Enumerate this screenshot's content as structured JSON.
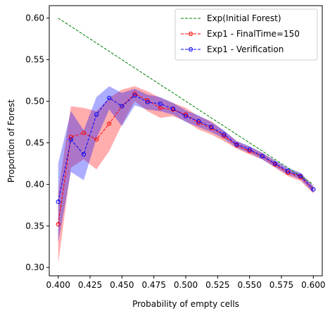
{
  "chart_data": {
    "type": "line",
    "xlabel": "Probability of empty cells",
    "ylabel": "Proportion of Forest",
    "xlim": [
      0.393,
      0.607
    ],
    "ylim": [
      0.29,
      0.615
    ],
    "xticks": [
      0.4,
      0.425,
      0.45,
      0.475,
      0.5,
      0.525,
      0.55,
      0.575,
      0.6
    ],
    "xtick_labels": [
      "0.400",
      "0.425",
      "0.450",
      "0.475",
      "0.500",
      "0.525",
      "0.550",
      "0.575",
      "0.600"
    ],
    "yticks": [
      0.3,
      0.35,
      0.4,
      0.45,
      0.5,
      0.55,
      0.6
    ],
    "ytick_labels": [
      "0.30",
      "0.35",
      "0.40",
      "0.45",
      "0.50",
      "0.55",
      "0.60"
    ],
    "grid": false,
    "legend_position": "top-right",
    "series": [
      {
        "name": "Exp(Initial Forest)",
        "color": "#008000",
        "style": "dashed",
        "marker": "none",
        "x": [
          0.4,
          0.6
        ],
        "y": [
          0.6,
          0.4
        ]
      },
      {
        "name": "Exp1 - FinalTime=150",
        "color": "#ff0000",
        "style": "dashed",
        "marker": "circle",
        "x": [
          0.4,
          0.41,
          0.42,
          0.43,
          0.44,
          0.45,
          0.46,
          0.47,
          0.48,
          0.49,
          0.5,
          0.51,
          0.52,
          0.53,
          0.54,
          0.55,
          0.56,
          0.57,
          0.58,
          0.59,
          0.6
        ],
        "y": [
          0.352,
          0.457,
          0.462,
          0.454,
          0.473,
          0.494,
          0.509,
          0.501,
          0.492,
          0.49,
          0.484,
          0.474,
          0.468,
          0.458,
          0.447,
          0.44,
          0.434,
          0.424,
          0.414,
          0.409,
          0.394
        ],
        "band_low": [
          0.305,
          0.42,
          0.43,
          0.418,
          0.44,
          0.472,
          0.5,
          0.488,
          0.48,
          0.482,
          0.476,
          0.466,
          0.46,
          0.452,
          0.443,
          0.436,
          0.43,
          0.42,
          0.41,
          0.404,
          0.389
        ],
        "band_high": [
          0.39,
          0.494,
          0.492,
          0.488,
          0.504,
          0.514,
          0.518,
          0.512,
          0.504,
          0.498,
          0.492,
          0.482,
          0.476,
          0.464,
          0.452,
          0.445,
          0.438,
          0.428,
          0.418,
          0.413,
          0.398
        ]
      },
      {
        "name": "Exp1 - Verification",
        "color": "#0000ff",
        "style": "dashed",
        "marker": "circle",
        "x": [
          0.4,
          0.41,
          0.42,
          0.43,
          0.44,
          0.45,
          0.46,
          0.47,
          0.48,
          0.49,
          0.5,
          0.51,
          0.52,
          0.53,
          0.54,
          0.55,
          0.56,
          0.57,
          0.58,
          0.59,
          0.6
        ],
        "y": [
          0.379,
          0.454,
          0.436,
          0.484,
          0.504,
          0.494,
          0.507,
          0.499,
          0.497,
          0.491,
          0.482,
          0.476,
          0.469,
          0.46,
          0.448,
          0.442,
          0.434,
          0.425,
          0.416,
          0.41,
          0.394
        ],
        "band_low": [
          0.33,
          0.415,
          0.405,
          0.455,
          0.49,
          0.47,
          0.495,
          0.49,
          0.488,
          0.484,
          0.475,
          0.469,
          0.463,
          0.455,
          0.444,
          0.438,
          0.43,
          0.421,
          0.412,
          0.406,
          0.39
        ],
        "band_high": [
          0.425,
          0.488,
          0.465,
          0.505,
          0.518,
          0.51,
          0.515,
          0.508,
          0.505,
          0.498,
          0.489,
          0.483,
          0.475,
          0.465,
          0.452,
          0.446,
          0.438,
          0.429,
          0.42,
          0.414,
          0.398
        ]
      }
    ]
  }
}
